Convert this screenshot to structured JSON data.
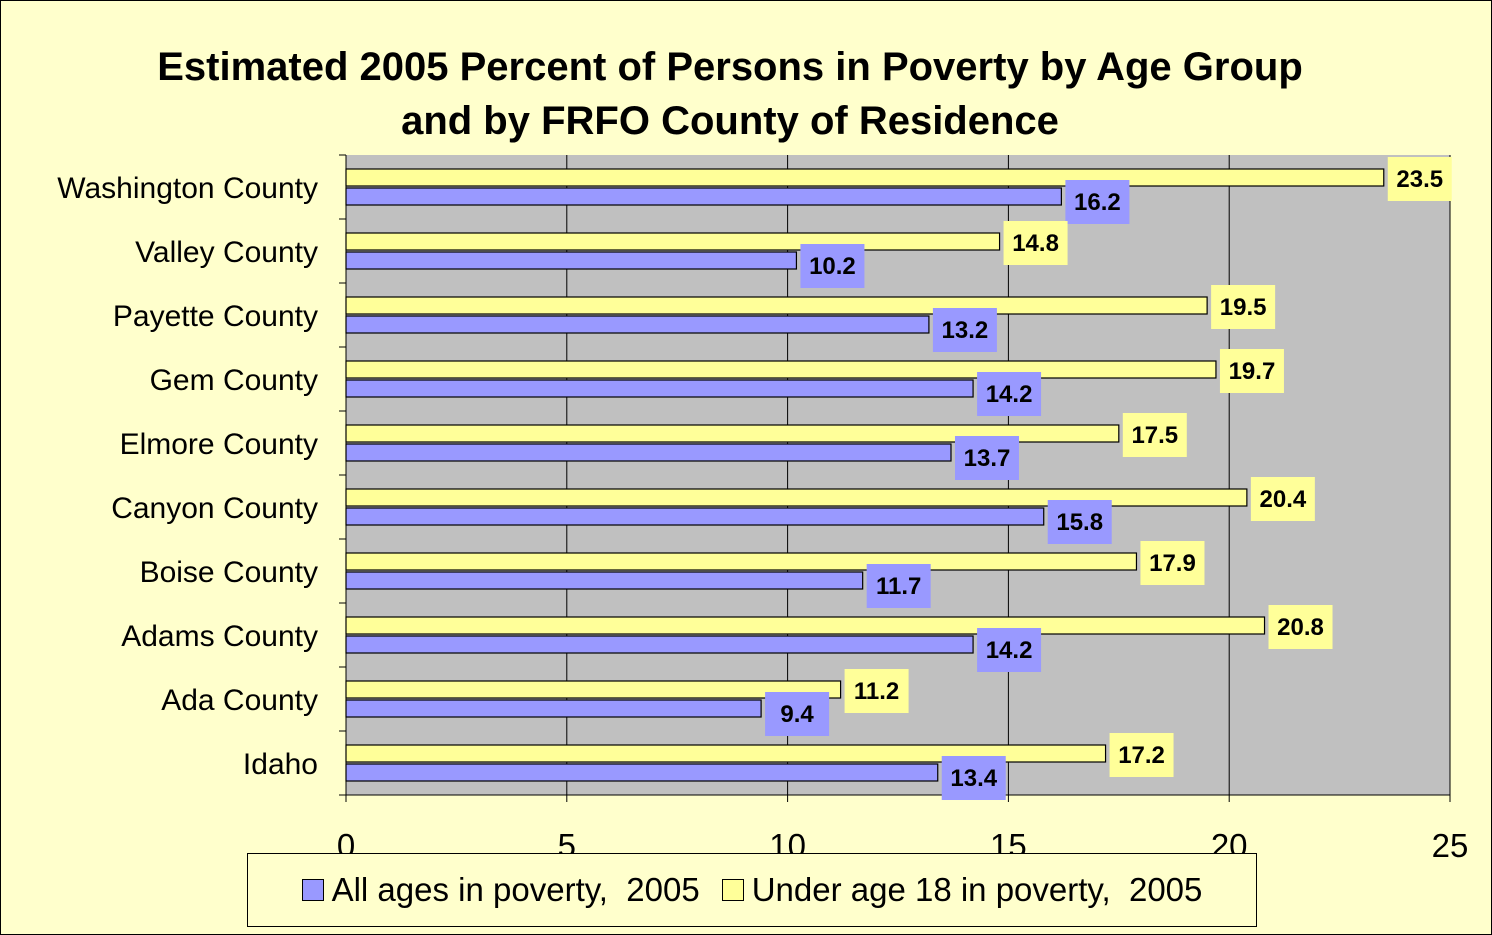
{
  "chart_data": {
    "type": "bar",
    "orientation": "horizontal",
    "title": "Estimated 2005 Percent of Persons in Poverty by Age Group and by FRFO County of Residence",
    "categories": [
      "Washington County",
      "Valley County",
      "Payette County",
      "Gem County",
      "Elmore County",
      "Canyon County",
      "Boise County",
      "Adams County",
      "Ada County",
      "Idaho"
    ],
    "series": [
      {
        "name": "Under age 18 in poverty,  2005",
        "color": "#ffff99",
        "values": [
          23.5,
          14.8,
          19.5,
          19.7,
          17.5,
          20.4,
          17.9,
          20.8,
          11.2,
          17.2
        ]
      },
      {
        "name": "All ages in poverty,  2005",
        "color": "#9999ff",
        "values": [
          16.2,
          10.2,
          13.2,
          14.2,
          13.7,
          15.8,
          11.7,
          14.2,
          9.4,
          13.4
        ]
      }
    ],
    "xlim": [
      0,
      25
    ],
    "xticks": [
      0,
      5,
      10,
      15,
      20,
      25
    ],
    "xlabel": "",
    "ylabel": "",
    "grid": true,
    "legend_position": "bottom",
    "legend_order": [
      1,
      0
    ],
    "plot_background": "#c0c0c0",
    "background": "#ffffcc"
  }
}
